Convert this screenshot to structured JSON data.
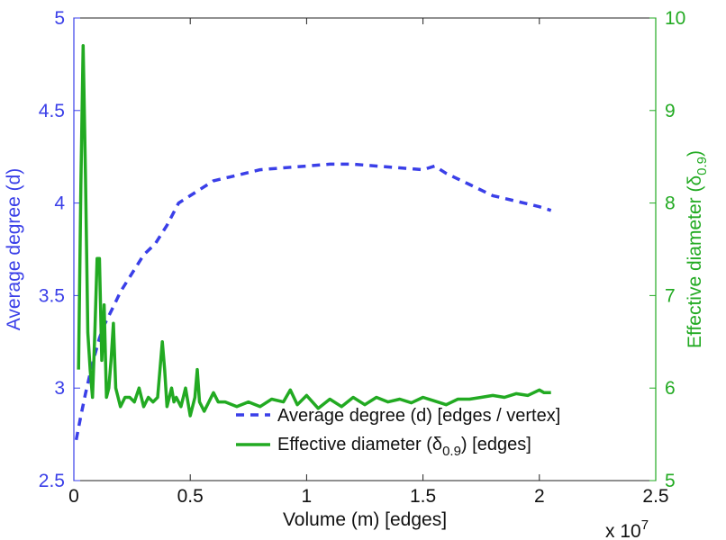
{
  "chart_data": {
    "type": "line",
    "xlabel": "Volume (m) [edges]",
    "x_multiplier": "x 10",
    "x_multiplier_exp": "7",
    "xlim": [
      0,
      2.5
    ],
    "xticks": [
      "0",
      "0.5",
      "1",
      "1.5",
      "2",
      "2.5"
    ],
    "y_left": {
      "label": "Average degree (d)",
      "ylim": [
        2.5,
        5
      ],
      "ticks": [
        "2.5",
        "3",
        "3.5",
        "4",
        "4.5",
        "5"
      ],
      "color": "#3a3fe8"
    },
    "y_right": {
      "label": "Effective diameter (δ",
      "label_sub": "0.9",
      "label_end": ")",
      "ylim": [
        5,
        10
      ],
      "ticks": [
        "5",
        "6",
        "7",
        "8",
        "9",
        "10"
      ],
      "color": "#22aa22"
    },
    "legend": {
      "placement": "bottom-right",
      "entries": [
        {
          "text": "Average degree (d) [edges / vertex]",
          "sub": "",
          "text_end": ""
        },
        {
          "text": "Effective diameter (δ",
          "sub": "0.9",
          "text_end": ") [edges]"
        }
      ]
    },
    "series": [
      {
        "name": "Average degree (d) [edges / vertex]",
        "axis": "left",
        "style": "dashed",
        "color": "#3a3fe8",
        "x": [
          0.01,
          0.03,
          0.05,
          0.07,
          0.09,
          0.11,
          0.13,
          0.15,
          0.17,
          0.2,
          0.25,
          0.3,
          0.35,
          0.4,
          0.45,
          0.5,
          0.6,
          0.7,
          0.8,
          0.9,
          1.0,
          1.1,
          1.2,
          1.3,
          1.4,
          1.5,
          1.55,
          1.6,
          1.7,
          1.8,
          1.9,
          2.0,
          2.05
        ],
        "y": [
          2.72,
          2.85,
          2.97,
          3.08,
          3.18,
          3.27,
          3.34,
          3.39,
          3.44,
          3.52,
          3.62,
          3.72,
          3.78,
          3.88,
          4.0,
          4.04,
          4.12,
          4.15,
          4.18,
          4.19,
          4.2,
          4.21,
          4.21,
          4.2,
          4.19,
          4.18,
          4.2,
          4.16,
          4.1,
          4.04,
          4.01,
          3.98,
          3.96
        ]
      },
      {
        "name": "Effective diameter (δ0.9) [edges]",
        "axis": "right",
        "style": "solid",
        "color": "#22aa22",
        "x": [
          0.02,
          0.03,
          0.04,
          0.05,
          0.06,
          0.07,
          0.08,
          0.09,
          0.1,
          0.11,
          0.12,
          0.13,
          0.14,
          0.15,
          0.16,
          0.17,
          0.18,
          0.19,
          0.2,
          0.22,
          0.24,
          0.26,
          0.28,
          0.3,
          0.32,
          0.34,
          0.36,
          0.38,
          0.39,
          0.4,
          0.42,
          0.43,
          0.44,
          0.46,
          0.48,
          0.5,
          0.52,
          0.53,
          0.54,
          0.56,
          0.58,
          0.6,
          0.62,
          0.65,
          0.7,
          0.75,
          0.8,
          0.85,
          0.9,
          0.93,
          0.96,
          1.0,
          1.05,
          1.1,
          1.15,
          1.2,
          1.25,
          1.3,
          1.35,
          1.4,
          1.45,
          1.5,
          1.55,
          1.6,
          1.65,
          1.7,
          1.75,
          1.8,
          1.85,
          1.9,
          1.95,
          2.0,
          2.02,
          2.05
        ],
        "y": [
          6.2,
          8.2,
          9.7,
          8.3,
          6.6,
          6.2,
          5.9,
          6.6,
          7.4,
          7.4,
          6.3,
          6.9,
          5.9,
          6.0,
          6.3,
          6.7,
          6.0,
          5.9,
          5.8,
          5.9,
          5.9,
          5.85,
          6.0,
          5.8,
          5.9,
          5.85,
          5.9,
          6.5,
          6.2,
          5.8,
          6.0,
          5.85,
          5.9,
          5.8,
          6.0,
          5.7,
          5.9,
          6.2,
          5.85,
          5.75,
          5.85,
          5.95,
          5.85,
          5.85,
          5.8,
          5.85,
          5.8,
          5.88,
          5.85,
          5.98,
          5.82,
          5.92,
          5.78,
          5.88,
          5.8,
          5.9,
          5.82,
          5.9,
          5.85,
          5.88,
          5.84,
          5.9,
          5.86,
          5.82,
          5.88,
          5.88,
          5.9,
          5.92,
          5.9,
          5.94,
          5.92,
          5.98,
          5.95,
          5.95
        ]
      }
    ]
  }
}
